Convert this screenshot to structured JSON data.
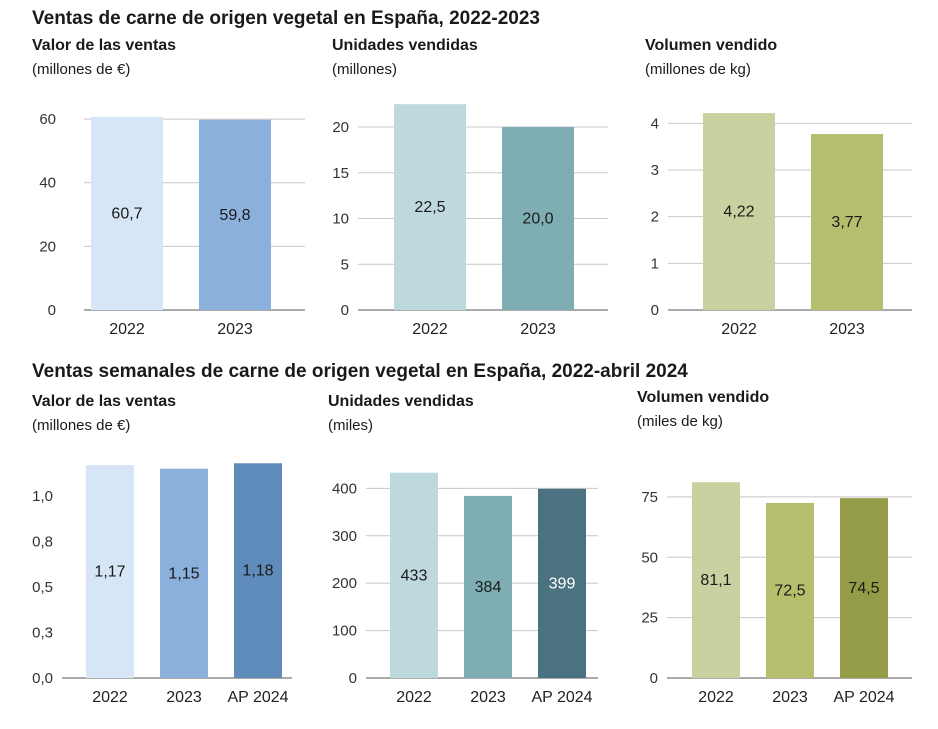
{
  "sections": [
    {
      "title": "Ventas de carne de origen vegetal en España, 2022-2023"
    },
    {
      "title": "Ventas semanales de carne de origen vegetal en España, 2022-abril 2024"
    }
  ],
  "chart_data": [
    {
      "type": "bar",
      "title": "Valor de las ventas",
      "subtitle": "(millones de €)",
      "categories": [
        "2022",
        "2023"
      ],
      "values": [
        60.7,
        59.8
      ],
      "data_labels": [
        "60,7",
        "59,8"
      ],
      "colors": [
        "#d6e6f6",
        "#8bb0dc"
      ],
      "label_colors": [
        "#1a1a1a",
        "#1a1a1a"
      ],
      "ylim": [
        0,
        66
      ],
      "yticks": [
        0,
        20,
        40,
        60
      ],
      "ytick_labels": [
        "0",
        "20",
        "40",
        "60"
      ],
      "grid": true
    },
    {
      "type": "bar",
      "title": "Unidades vendidas",
      "subtitle": "(millones)",
      "categories": [
        "2022",
        "2023"
      ],
      "values": [
        22.5,
        20.0
      ],
      "data_labels": [
        "22,5",
        "20,0"
      ],
      "colors": [
        "#bed9de",
        "#7eaeb3"
      ],
      "label_colors": [
        "#1a1a1a",
        "#1a1a1a"
      ],
      "ylim": [
        0,
        23.5
      ],
      "yticks": [
        0,
        5,
        10,
        15,
        20
      ],
      "ytick_labels": [
        "0",
        "5",
        "10",
        "15",
        "20"
      ],
      "grid": true
    },
    {
      "type": "bar",
      "title": "Volumen vendido",
      "subtitle": "(millones de kg)",
      "categories": [
        "2022",
        "2023"
      ],
      "values": [
        4.22,
        3.77
      ],
      "data_labels": [
        "4,22",
        "3,77"
      ],
      "colors": [
        "#c8d2a0",
        "#b4be6c"
      ],
      "label_colors": [
        "#1a1a1a",
        "#1a1a1a"
      ],
      "ylim": [
        0,
        4.5
      ],
      "yticks": [
        0,
        1,
        2,
        3,
        4
      ],
      "ytick_labels": [
        "0",
        "1",
        "2",
        "3",
        "4"
      ],
      "grid": true
    },
    {
      "type": "bar",
      "title": "Valor de las ventas",
      "subtitle": "(millones de €)",
      "categories": [
        "2022",
        "2023",
        "AP 2024"
      ],
      "values": [
        1.17,
        1.15,
        1.18
      ],
      "data_labels": [
        "1,17",
        "1,15",
        "1,18"
      ],
      "colors": [
        "#d6e6f6",
        "#8bb0dc",
        "#5f8cba"
      ],
      "label_colors": [
        "#1a1a1a",
        "#1a1a1a",
        "#1a1a1a"
      ],
      "ylim": [
        0,
        1.22
      ],
      "yticks": [
        0,
        0.25,
        0.5,
        0.75,
        1.0
      ],
      "ytick_labels": [
        "0,0",
        "0,3",
        "0,5",
        "0,8",
        "1,0"
      ],
      "grid": false
    },
    {
      "type": "bar",
      "title": "Unidades vendidas",
      "subtitle": "(miles)",
      "categories": [
        "2022",
        "2023",
        "AP 2024"
      ],
      "values": [
        433,
        384,
        399
      ],
      "data_labels": [
        "433",
        "384",
        "399"
      ],
      "colors": [
        "#bed9de",
        "#7eaeb3",
        "#4b7280"
      ],
      "label_colors": [
        "#1a1a1a",
        "#1a1a1a",
        "#ffffff"
      ],
      "ylim": [
        0,
        445
      ],
      "yticks": [
        0,
        100,
        200,
        300,
        400
      ],
      "ytick_labels": [
        "0",
        "100",
        "200",
        "300",
        "400"
      ],
      "grid": true
    },
    {
      "type": "bar",
      "title": "Volumen vendido",
      "subtitle": "(miles de kg)",
      "categories": [
        "2022",
        "2023",
        "AP 2024"
      ],
      "values": [
        81.1,
        72.5,
        74.5
      ],
      "data_labels": [
        "81,1",
        "72,5",
        "74,5"
      ],
      "colors": [
        "#c8d2a0",
        "#b4be6c",
        "#949c48"
      ],
      "label_colors": [
        "#1a1a1a",
        "#1a1a1a",
        "#1a1a1a"
      ],
      "ylim": [
        0,
        82
      ],
      "yticks": [
        0,
        25,
        50,
        75
      ],
      "ytick_labels": [
        "0",
        "25",
        "50",
        "75"
      ],
      "grid": true
    }
  ]
}
